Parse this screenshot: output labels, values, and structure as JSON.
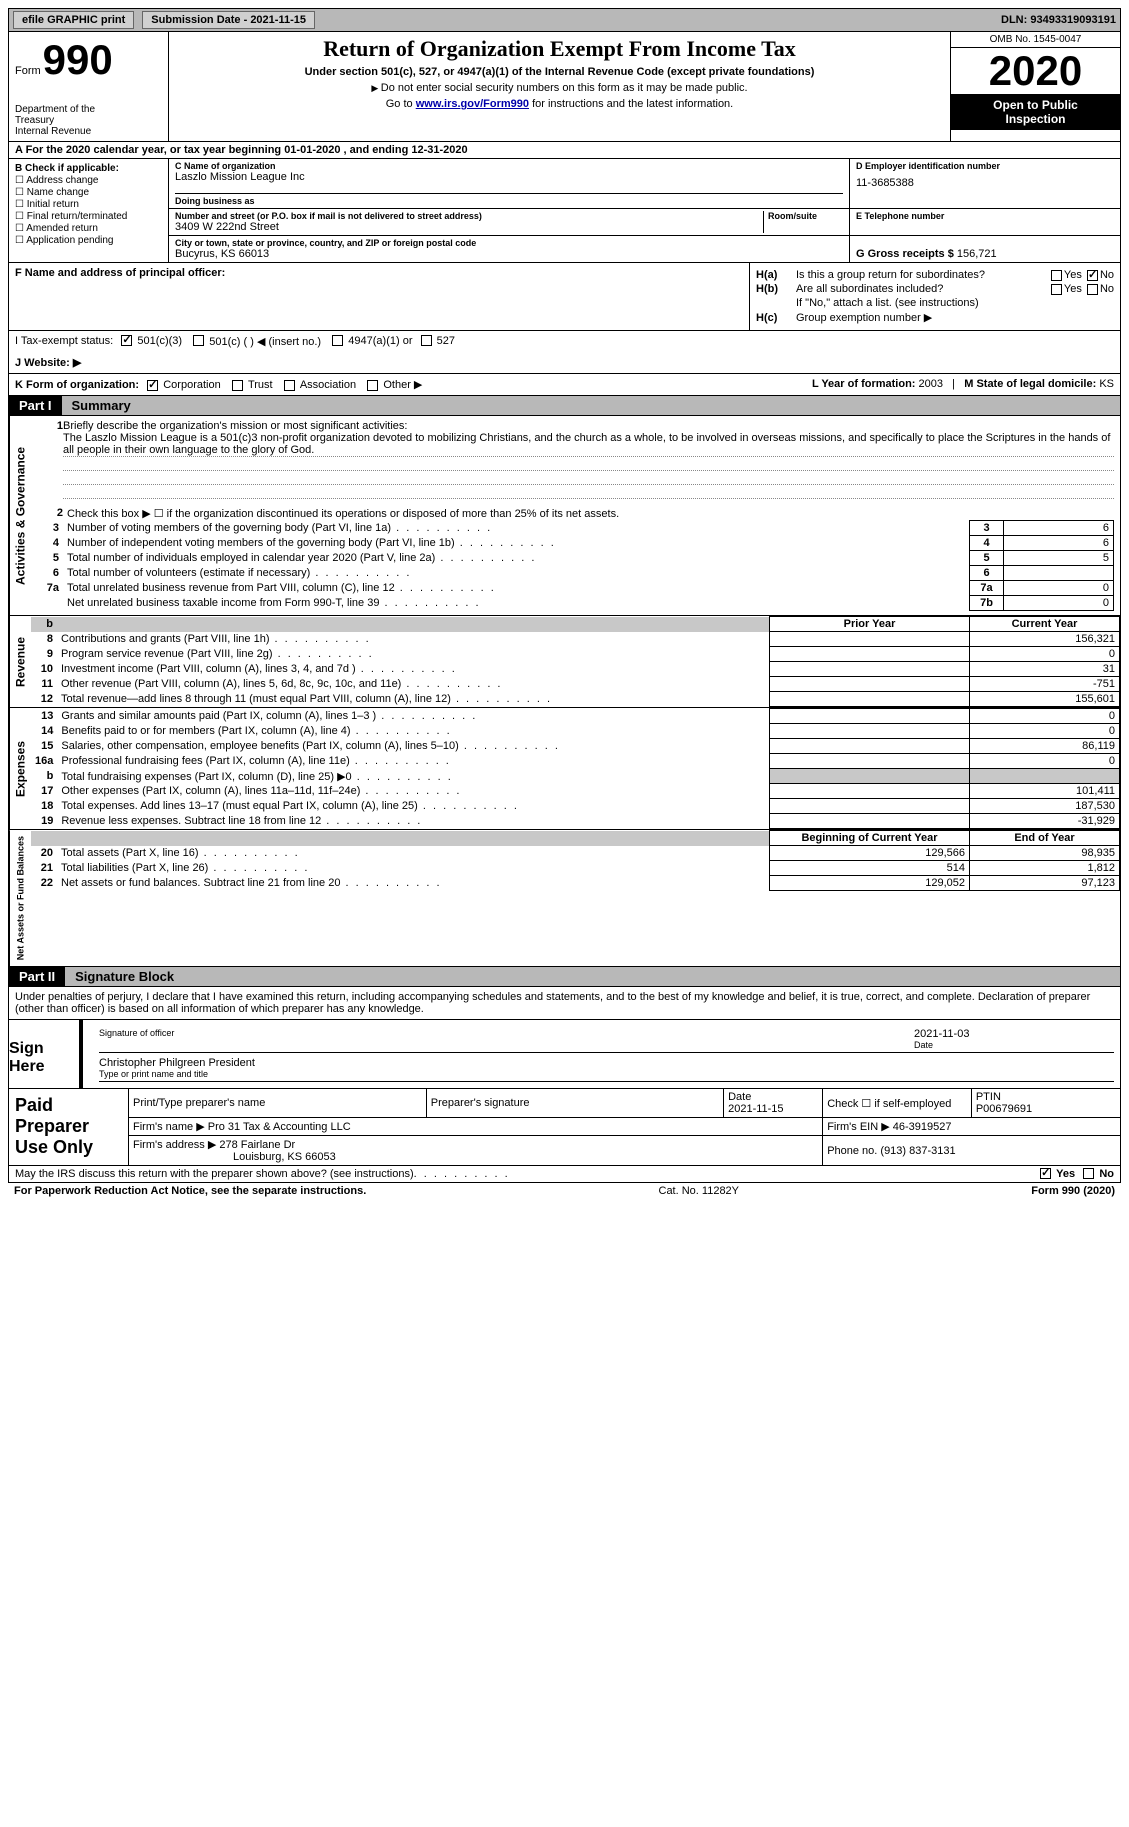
{
  "colors": {
    "top_bar_bg": "#b8b8b8",
    "part_header_bg": "#b8b8b8",
    "shade_bg": "#c8c8c8",
    "black": "#000000",
    "link": "#0000aa"
  },
  "top": {
    "efile": "efile GRAPHIC print",
    "submission": "Submission Date - 2021-11-15",
    "dln": "DLN: 93493319093191"
  },
  "header": {
    "form_label": "Form",
    "form_num": "990",
    "dept1": "Department of the",
    "dept2": "Treasury",
    "dept3": "Internal Revenue",
    "title": "Return of Organization Exempt From Income Tax",
    "subtitle": "Under section 501(c), 527, or 4947(a)(1) of the Internal Revenue Code (except private foundations)",
    "note1": "Do not enter social security numbers on this form as it may be made public.",
    "note2_pre": "Go to ",
    "note2_link": "www.irs.gov/Form990",
    "note2_post": " for instructions and the latest information.",
    "omb": "OMB No. 1545-0047",
    "year": "2020",
    "open1": "Open to Public",
    "open2": "Inspection"
  },
  "row_a": "A For the 2020 calendar year, or tax year beginning 01-01-2020    , and ending 12-31-2020",
  "section_b": {
    "label": "B Check if applicable:",
    "items": [
      "Address change",
      "Name change",
      "Initial return",
      "Final return/terminated",
      "Amended return",
      "Application pending"
    ]
  },
  "section_c": {
    "name_label": "C Name of organization",
    "name": "Laszlo Mission League Inc",
    "dba_label": "Doing business as",
    "dba": "",
    "addr_label": "Number and street (or P.O. box if mail is not delivered to street address)",
    "addr": "3409 W 222nd Street",
    "room_label": "Room/suite",
    "city_label": "City or town, state or province, country, and ZIP or foreign postal code",
    "city": "Bucyrus, KS   66013"
  },
  "section_d": {
    "ein_label": "D Employer identification number",
    "ein": "11-3685388",
    "phone_label": "E Telephone number",
    "phone": "",
    "gross_label": "G Gross receipts $",
    "gross": "156,721"
  },
  "section_f": {
    "label": "F  Name and address of principal officer:",
    "value": ""
  },
  "section_h": {
    "ha_label": "H(a)",
    "ha_text": "Is this a group return for subordinates?",
    "ha_yes": "Yes",
    "ha_no": "No",
    "hb_label": "H(b)",
    "hb_text": "Are all subordinates included?",
    "hb_note": "If \"No,\" attach a list. (see instructions)",
    "hc_label": "H(c)",
    "hc_text": "Group exemption number ▶"
  },
  "row_i": {
    "label": "I    Tax-exempt status:",
    "opts": [
      "501(c)(3)",
      "501(c) (  ) ◀ (insert no.)",
      "4947(a)(1) or",
      "527"
    ]
  },
  "row_j": {
    "label": "J   Website: ▶",
    "value": ""
  },
  "row_k": {
    "label": "K Form of organization:",
    "opts": [
      "Corporation",
      "Trust",
      "Association",
      "Other ▶"
    ],
    "l_label": "L Year of formation:",
    "l_val": "2003",
    "m_label": "M State of legal domicile:",
    "m_val": "KS"
  },
  "part1": {
    "num": "Part I",
    "title": "Summary"
  },
  "summary": {
    "line1_label": "1",
    "line1_text": "Briefly describe the organization's mission or most significant activities:",
    "mission": "The Laszlo Mission League is a 501(c)3 non-profit organization devoted to mobilizing Christians, and the church as a whole, to be involved in overseas missions, and specifically to place the Scriptures in the hands of all people in their own language to the glory of God.",
    "line2_text": "Check this box ▶ ☐  if the organization discontinued its operations or disposed of more than 25% of its net assets.",
    "governance_label": "Activities & Governance",
    "revenue_label": "Revenue",
    "expenses_label": "Expenses",
    "netassets_label": "Net Assets or Fund Balances",
    "rows_gov": [
      {
        "n": "3",
        "d": "Number of voting members of the governing body (Part VI, line 1a)",
        "box": "3",
        "v": "6"
      },
      {
        "n": "4",
        "d": "Number of independent voting members of the governing body (Part VI, line 1b)",
        "box": "4",
        "v": "6"
      },
      {
        "n": "5",
        "d": "Total number of individuals employed in calendar year 2020 (Part V, line 2a)",
        "box": "5",
        "v": "5"
      },
      {
        "n": "6",
        "d": "Total number of volunteers (estimate if necessary)",
        "box": "6",
        "v": ""
      },
      {
        "n": "7a",
        "d": "Total unrelated business revenue from Part VIII, column (C), line 12",
        "box": "7a",
        "v": "0"
      },
      {
        "n": "",
        "d": "Net unrelated business taxable income from Form 990-T, line 39",
        "box": "7b",
        "v": "0"
      }
    ],
    "prior_hdr": "Prior Year",
    "curr_hdr": "Current Year",
    "rows_rev": [
      {
        "n": "8",
        "d": "Contributions and grants (Part VIII, line 1h)",
        "p": "",
        "c": "156,321"
      },
      {
        "n": "9",
        "d": "Program service revenue (Part VIII, line 2g)",
        "p": "",
        "c": "0"
      },
      {
        "n": "10",
        "d": "Investment income (Part VIII, column (A), lines 3, 4, and 7d )",
        "p": "",
        "c": "31"
      },
      {
        "n": "11",
        "d": "Other revenue (Part VIII, column (A), lines 5, 6d, 8c, 9c, 10c, and 11e)",
        "p": "",
        "c": "-751"
      },
      {
        "n": "12",
        "d": "Total revenue—add lines 8 through 11 (must equal Part VIII, column (A), line 12)",
        "p": "",
        "c": "155,601"
      }
    ],
    "rows_exp": [
      {
        "n": "13",
        "d": "Grants and similar amounts paid (Part IX, column (A), lines 1–3 )",
        "p": "",
        "c": "0"
      },
      {
        "n": "14",
        "d": "Benefits paid to or for members (Part IX, column (A), line 4)",
        "p": "",
        "c": "0"
      },
      {
        "n": "15",
        "d": "Salaries, other compensation, employee benefits (Part IX, column (A), lines 5–10)",
        "p": "",
        "c": "86,119"
      },
      {
        "n": "16a",
        "d": "Professional fundraising fees (Part IX, column (A), line 11e)",
        "p": "",
        "c": "0"
      },
      {
        "n": "b",
        "d": "Total fundraising expenses (Part IX, column (D), line 25) ▶0",
        "p": "shade",
        "c": "shade"
      },
      {
        "n": "17",
        "d": "Other expenses (Part IX, column (A), lines 11a–11d, 11f–24e)",
        "p": "",
        "c": "101,411"
      },
      {
        "n": "18",
        "d": "Total expenses. Add lines 13–17 (must equal Part IX, column (A), line 25)",
        "p": "",
        "c": "187,530"
      },
      {
        "n": "19",
        "d": "Revenue less expenses. Subtract line 18 from line 12",
        "p": "",
        "c": "-31,929"
      }
    ],
    "beg_hdr": "Beginning of Current Year",
    "end_hdr": "End of Year",
    "rows_net": [
      {
        "n": "20",
        "d": "Total assets (Part X, line 16)",
        "p": "129,566",
        "c": "98,935"
      },
      {
        "n": "21",
        "d": "Total liabilities (Part X, line 26)",
        "p": "514",
        "c": "1,812"
      },
      {
        "n": "22",
        "d": "Net assets or fund balances. Subtract line 21 from line 20",
        "p": "129,052",
        "c": "97,123"
      }
    ]
  },
  "part2": {
    "num": "Part II",
    "title": "Signature Block"
  },
  "sig": {
    "perjury": "Under penalties of perjury, I declare that I have examined this return, including accompanying schedules and statements, and to the best of my knowledge and belief, it is true, correct, and complete. Declaration of preparer (other than officer) is based on all information of which preparer has any knowledge.",
    "sign_here": "Sign Here",
    "sig_officer": "Signature of officer",
    "date": "Date",
    "sig_date": "2021-11-03",
    "officer_name": "Christopher Philgreen  President",
    "type_label": "Type or print name and title"
  },
  "prep": {
    "title": "Paid Preparer Use Only",
    "name_label": "Print/Type preparer's name",
    "sig_label": "Preparer's signature",
    "date_label": "Date",
    "date_val": "2021-11-15",
    "check_label": "Check ☐ if self-employed",
    "ptin_label": "PTIN",
    "ptin_val": "P00679691",
    "firm_name_label": "Firm's name    ▶",
    "firm_name": "Pro 31 Tax & Accounting LLC",
    "firm_ein_label": "Firm's EIN ▶",
    "firm_ein": "46-3919527",
    "firm_addr_label": "Firm's address ▶",
    "firm_addr1": "278 Fairlane Dr",
    "firm_addr2": "Louisburg, KS   66053",
    "phone_label": "Phone no.",
    "phone": "(913) 837-3131"
  },
  "discuss": {
    "text": "May the IRS discuss this return with the preparer shown above? (see instructions)",
    "yes": "Yes",
    "no": "No"
  },
  "footer": {
    "left": "For Paperwork Reduction Act Notice, see the separate instructions.",
    "mid": "Cat. No. 11282Y",
    "right": "Form 990 (2020)"
  }
}
